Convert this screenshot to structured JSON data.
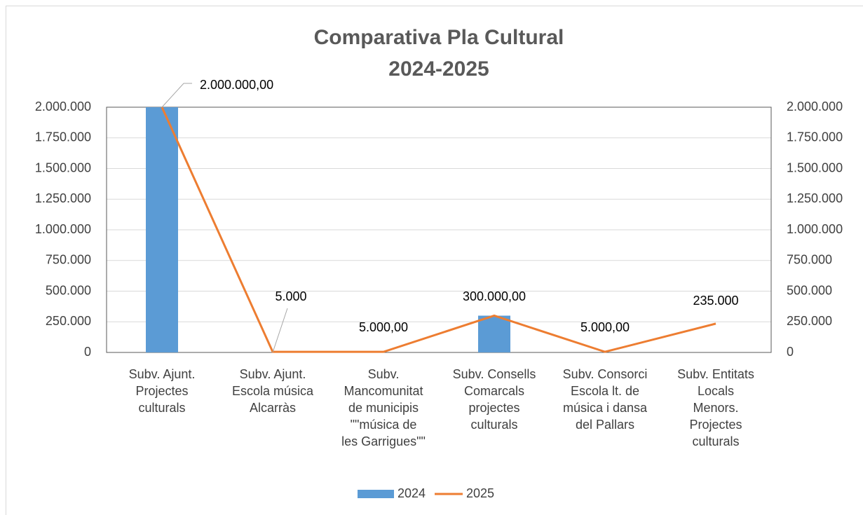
{
  "chart_data": {
    "type": "bar_line",
    "title": [
      "Comparativa Pla Cultural",
      "2024-2025"
    ],
    "categories": [
      [
        "Subv. Ajunt.",
        "Projectes",
        "culturals"
      ],
      [
        "Subv. Ajunt.",
        "Escola música",
        "Alcarràs"
      ],
      [
        "Subv.",
        "Mancomunitat",
        "de municipis",
        "\"\"música de",
        "les Garrigues\"\""
      ],
      [
        "Subv. Consells",
        "Comarcals",
        "projectes",
        "culturals"
      ],
      [
        "Subv. Consorci",
        "Escola lt. de",
        "música i dansa",
        "del Pallars"
      ],
      [
        "Subv. Entitats",
        "Locals",
        "Menors.",
        "Projectes",
        "culturals"
      ]
    ],
    "series": [
      {
        "name": "2024",
        "type": "bar",
        "color": "#5b9bd5",
        "values": [
          2000000,
          null,
          null,
          300000,
          null,
          null
        ]
      },
      {
        "name": "2025",
        "type": "line",
        "axis": "y2",
        "color": "#ed7d31",
        "values": [
          2000000,
          5000,
          5000,
          300000,
          5000,
          235000
        ],
        "value_labels": [
          "2.000.000,00",
          "5.000",
          "5.000,00",
          "300.000,00",
          "5.000,00",
          "235.000"
        ]
      }
    ],
    "ylim": [
      0,
      2000000
    ],
    "yticks": [
      0,
      {
        "value": 250000,
        "label": "250.000"
      },
      {
        "value": 500000,
        "label": "500.000"
      },
      {
        "value": 750000,
        "label": "750.000"
      },
      {
        "value": 1000000,
        "label": "1.000.000"
      },
      {
        "value": 1250000,
        "label": "1.250.000"
      },
      {
        "value": 1500000,
        "label": "1.500.000"
      },
      {
        "value": 1750000,
        "label": "1.750.000"
      },
      {
        "value": 2000000,
        "label": "2.000.000"
      }
    ],
    "y2lim": [
      0,
      2000000
    ],
    "y2ticks": [
      0,
      {
        "value": 250000,
        "label": "250.000"
      },
      {
        "value": 500000,
        "label": "500.000"
      },
      {
        "value": 750000,
        "label": "750.000"
      },
      {
        "value": 1000000,
        "label": "1.000.000"
      },
      {
        "value": 1250000,
        "label": "1.250.000"
      },
      {
        "value": 1500000,
        "label": "1.500.000"
      },
      {
        "value": 1750000,
        "label": "1.750.000"
      },
      {
        "value": 2000000,
        "label": "2.000.000"
      }
    ],
    "grid": true,
    "legend": "bottom"
  }
}
